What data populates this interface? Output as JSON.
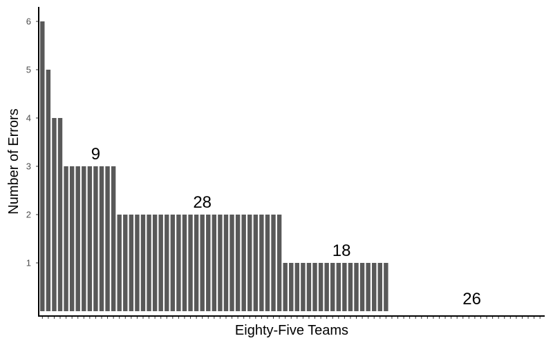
{
  "chart_data": {
    "type": "bar",
    "title": "",
    "xlabel": "Eighty-Five Teams",
    "ylabel": "Number of Errors",
    "ylim": [
      -0.1,
      6.3
    ],
    "yticks": [
      1,
      2,
      3,
      4,
      5,
      6
    ],
    "n_teams": 85,
    "values": [
      6,
      5,
      4,
      4,
      3,
      3,
      3,
      3,
      3,
      3,
      3,
      3,
      3,
      2,
      2,
      2,
      2,
      2,
      2,
      2,
      2,
      2,
      2,
      2,
      2,
      2,
      2,
      2,
      2,
      2,
      2,
      2,
      2,
      2,
      2,
      2,
      2,
      2,
      2,
      2,
      2,
      1,
      1,
      1,
      1,
      1,
      1,
      1,
      1,
      1,
      1,
      1,
      1,
      1,
      1,
      1,
      1,
      1,
      1,
      0,
      0,
      0,
      0,
      0,
      0,
      0,
      0,
      0,
      0,
      0,
      0,
      0,
      0,
      0,
      0,
      0,
      0,
      0,
      0,
      0,
      0,
      0,
      0,
      0,
      0
    ],
    "bar_color": "#595959",
    "grid": false,
    "legend": "none",
    "annotations": [
      {
        "text": "9",
        "x": 9,
        "y": 3
      },
      {
        "text": "28",
        "x": 27,
        "y": 2
      },
      {
        "text": "18",
        "x": 50.5,
        "y": 1
      },
      {
        "text": "26",
        "x": 72.5,
        "y": 0
      }
    ]
  }
}
